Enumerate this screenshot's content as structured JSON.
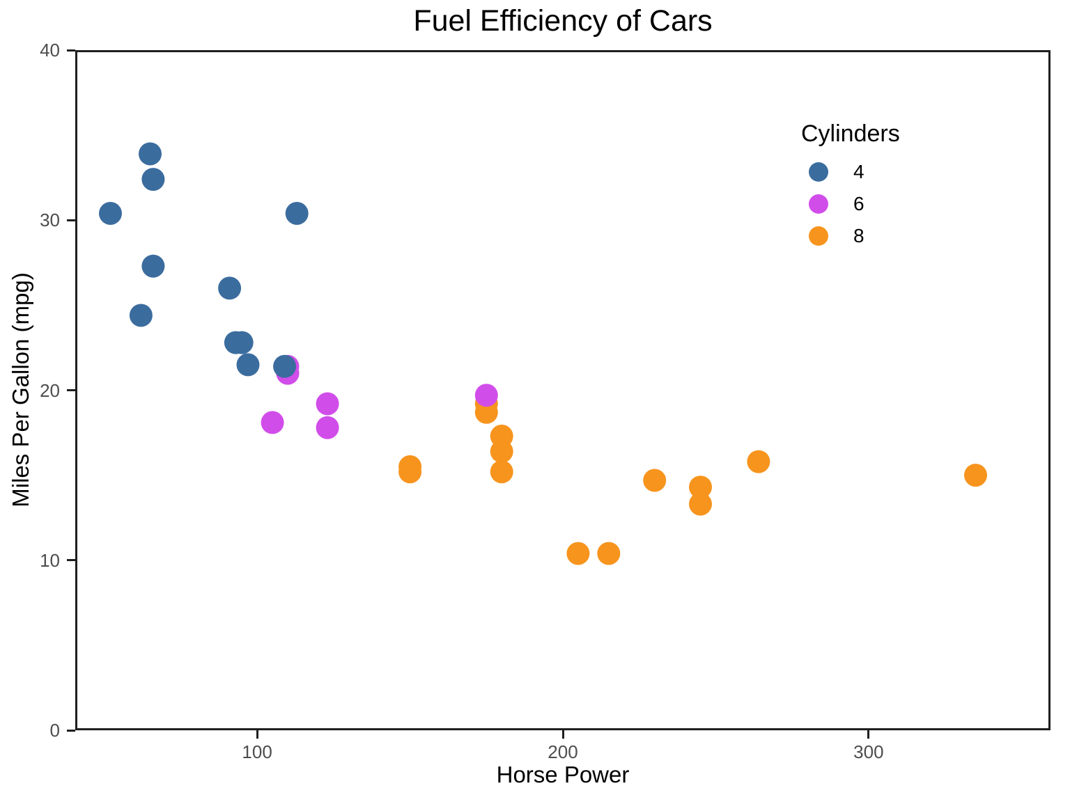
{
  "chart_data": {
    "type": "scatter",
    "title": "Fuel Efficiency of Cars",
    "xlabel": "Horse Power",
    "ylabel": "Miles Per Gallon (mpg)",
    "xlim": [
      40.5,
      359.5
    ],
    "ylim": [
      0,
      40
    ],
    "grid": false,
    "x_ticks": [
      {
        "value": 100,
        "label": "100"
      },
      {
        "value": 200,
        "label": "200"
      },
      {
        "value": 300,
        "label": "300"
      }
    ],
    "y_ticks": [
      {
        "value": 0,
        "label": "0"
      },
      {
        "value": 10,
        "label": "10"
      },
      {
        "value": 20,
        "label": "20"
      },
      {
        "value": 30,
        "label": "30"
      },
      {
        "value": 40,
        "label": "40"
      }
    ],
    "legend": {
      "title": "Cylinders",
      "position": "inside-top-right",
      "entries": [
        {
          "label": "4",
          "color": "#3B6C9E"
        },
        {
          "label": "6",
          "color": "#D14DEA"
        },
        {
          "label": "8",
          "color": "#F7941D"
        }
      ]
    },
    "series_colors": {
      "4": "#3B6C9E",
      "6": "#D14DEA",
      "8": "#F7941D"
    },
    "points": [
      {
        "hp": 110,
        "mpg": 21.0,
        "cyl": 6
      },
      {
        "hp": 110,
        "mpg": 21.0,
        "cyl": 6
      },
      {
        "hp": 93,
        "mpg": 22.8,
        "cyl": 4
      },
      {
        "hp": 110,
        "mpg": 21.4,
        "cyl": 6
      },
      {
        "hp": 175,
        "mpg": 18.7,
        "cyl": 8
      },
      {
        "hp": 105,
        "mpg": 18.1,
        "cyl": 6
      },
      {
        "hp": 245,
        "mpg": 14.3,
        "cyl": 8
      },
      {
        "hp": 62,
        "mpg": 24.4,
        "cyl": 4
      },
      {
        "hp": 95,
        "mpg": 22.8,
        "cyl": 4
      },
      {
        "hp": 123,
        "mpg": 19.2,
        "cyl": 6
      },
      {
        "hp": 123,
        "mpg": 17.8,
        "cyl": 6
      },
      {
        "hp": 180,
        "mpg": 16.4,
        "cyl": 8
      },
      {
        "hp": 180,
        "mpg": 17.3,
        "cyl": 8
      },
      {
        "hp": 180,
        "mpg": 15.2,
        "cyl": 8
      },
      {
        "hp": 205,
        "mpg": 10.4,
        "cyl": 8
      },
      {
        "hp": 215,
        "mpg": 10.4,
        "cyl": 8
      },
      {
        "hp": 230,
        "mpg": 14.7,
        "cyl": 8
      },
      {
        "hp": 66,
        "mpg": 32.4,
        "cyl": 4
      },
      {
        "hp": 52,
        "mpg": 30.4,
        "cyl": 4
      },
      {
        "hp": 65,
        "mpg": 33.9,
        "cyl": 4
      },
      {
        "hp": 97,
        "mpg": 21.5,
        "cyl": 4
      },
      {
        "hp": 150,
        "mpg": 15.5,
        "cyl": 8
      },
      {
        "hp": 150,
        "mpg": 15.2,
        "cyl": 8
      },
      {
        "hp": 245,
        "mpg": 13.3,
        "cyl": 8
      },
      {
        "hp": 175,
        "mpg": 19.2,
        "cyl": 8
      },
      {
        "hp": 66,
        "mpg": 27.3,
        "cyl": 4
      },
      {
        "hp": 91,
        "mpg": 26.0,
        "cyl": 4
      },
      {
        "hp": 113,
        "mpg": 30.4,
        "cyl": 4
      },
      {
        "hp": 264,
        "mpg": 15.8,
        "cyl": 8
      },
      {
        "hp": 175,
        "mpg": 19.7,
        "cyl": 6
      },
      {
        "hp": 335,
        "mpg": 15.0,
        "cyl": 8
      },
      {
        "hp": 109,
        "mpg": 21.4,
        "cyl": 4
      }
    ]
  },
  "colors": {
    "background": "#FFFFFF",
    "axis_line": "#1F1F1F",
    "tick_text": "#4D4D4D",
    "title_text": "#000000"
  }
}
